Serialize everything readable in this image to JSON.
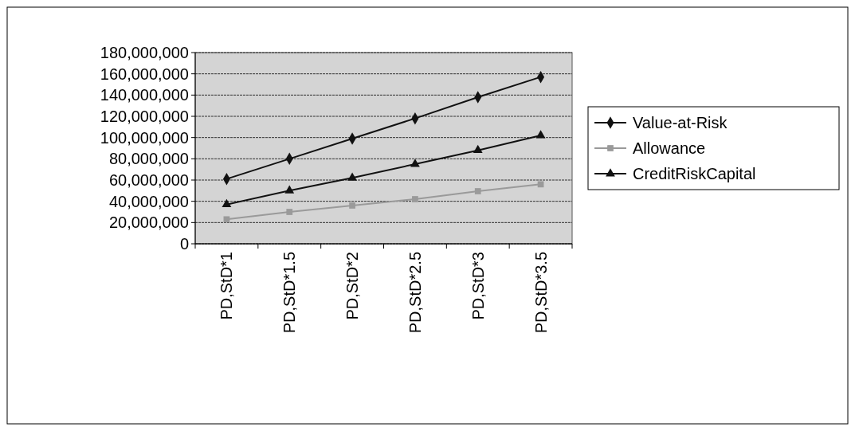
{
  "chart_data": {
    "type": "line",
    "categories": [
      "PD,StD*1",
      "PD,StD*1.5",
      "PD,StD*2",
      "PD,StD*2.5",
      "PD,StD*3",
      "PD,StD*3.5"
    ],
    "series": [
      {
        "name": "Value-at-Risk",
        "color": "#111111",
        "marker": "diamond",
        "values": [
          61000000,
          80000000,
          99000000,
          118000000,
          138000000,
          157000000
        ]
      },
      {
        "name": "Allowance",
        "color": "#9a9a9a",
        "marker": "square",
        "values": [
          23000000,
          30000000,
          36000000,
          42000000,
          49500000,
          56000000
        ]
      },
      {
        "name": "CreditRiskCapital",
        "color": "#111111",
        "marker": "triangle",
        "values": [
          37000000,
          50000000,
          62000000,
          75000000,
          88000000,
          102000000
        ]
      }
    ],
    "ylim": [
      0,
      180000000
    ],
    "yticks": [
      {
        "value": 0,
        "label": "0"
      },
      {
        "value": 20000000,
        "label": "20,000,000"
      },
      {
        "value": 40000000,
        "label": "40,000,000"
      },
      {
        "value": 60000000,
        "label": "60,000,000"
      },
      {
        "value": 80000000,
        "label": "80,000,000"
      },
      {
        "value": 100000000,
        "label": "100,000,000"
      },
      {
        "value": 120000000,
        "label": "120,000,000"
      },
      {
        "value": 140000000,
        "label": "140,000,000"
      },
      {
        "value": 160000000,
        "label": "160,000,000"
      },
      {
        "value": 180000000,
        "label": "180,000,000"
      }
    ],
    "grid": "y",
    "legend": "right",
    "line_style": "solid"
  }
}
